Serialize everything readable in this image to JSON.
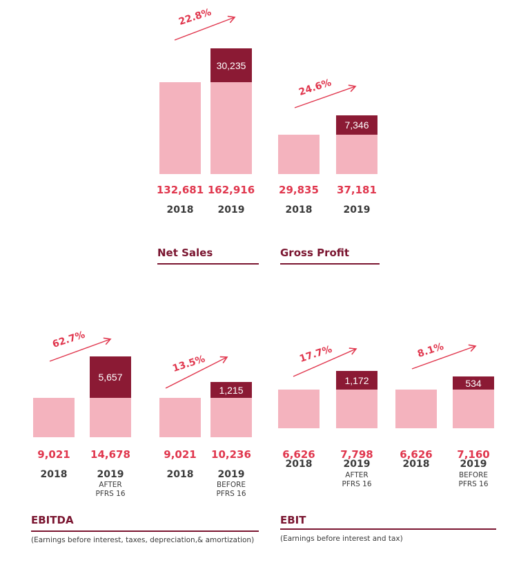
{
  "colors": {
    "base": "#f4b3be",
    "increase": "#8b1a34",
    "value_text": "#e0364d",
    "title": "#7a1530"
  },
  "chart_data": [
    {
      "type": "bar",
      "title": "Net Sales",
      "categories": [
        "2018",
        "2019"
      ],
      "values": [
        132681,
        162916
      ],
      "value_labels": [
        "132,681",
        "162,916"
      ],
      "increase": {
        "value": 30235,
        "label": "30,235"
      },
      "growth": "22.8%",
      "ylim": [
        0,
        180000
      ]
    },
    {
      "type": "bar",
      "title": "Gross Profit",
      "categories": [
        "2018",
        "2019"
      ],
      "values": [
        29835,
        37181
      ],
      "value_labels": [
        "29,835",
        "37,181"
      ],
      "increase": {
        "value": 7346,
        "label": "7,346"
      },
      "growth": "24.6%"
    },
    {
      "type": "bar",
      "title": "EBITDA",
      "subtitle": "(Earnings before interest, taxes, depreciation,& amortization)",
      "groups": [
        {
          "categories": [
            "2018",
            "2019"
          ],
          "category_notes": [
            "",
            "AFTER PFRS 16"
          ],
          "values": [
            9021,
            14678
          ],
          "value_labels": [
            "9,021",
            "14,678"
          ],
          "increase": {
            "value": 5657,
            "label": "5,657"
          },
          "growth": "62.7%"
        },
        {
          "categories": [
            "2018",
            "2019"
          ],
          "category_notes": [
            "",
            "BEFORE PFRS 16"
          ],
          "values": [
            9021,
            10236
          ],
          "value_labels": [
            "9,021",
            "10,236"
          ],
          "increase": {
            "value": 1215,
            "label": "1,215"
          },
          "growth": "13.5%"
        }
      ]
    },
    {
      "type": "bar",
      "title": "EBIT",
      "subtitle": "(Earnings before interest and tax)",
      "groups": [
        {
          "categories": [
            "2018",
            "2019"
          ],
          "category_notes": [
            "",
            "AFTER PFRS 16"
          ],
          "values": [
            6626,
            7798
          ],
          "value_labels": [
            "6,626",
            "7,798"
          ],
          "increase": {
            "value": 1172,
            "label": "1,172"
          },
          "growth": "17.7%"
        },
        {
          "categories": [
            "2018",
            "2019"
          ],
          "category_notes": [
            "",
            "BEFORE PFRS 16"
          ],
          "values": [
            6626,
            7160
          ],
          "value_labels": [
            "6,626",
            "7,160"
          ],
          "increase": {
            "value": 534,
            "label": "534"
          },
          "growth": "8.1%"
        }
      ]
    }
  ]
}
